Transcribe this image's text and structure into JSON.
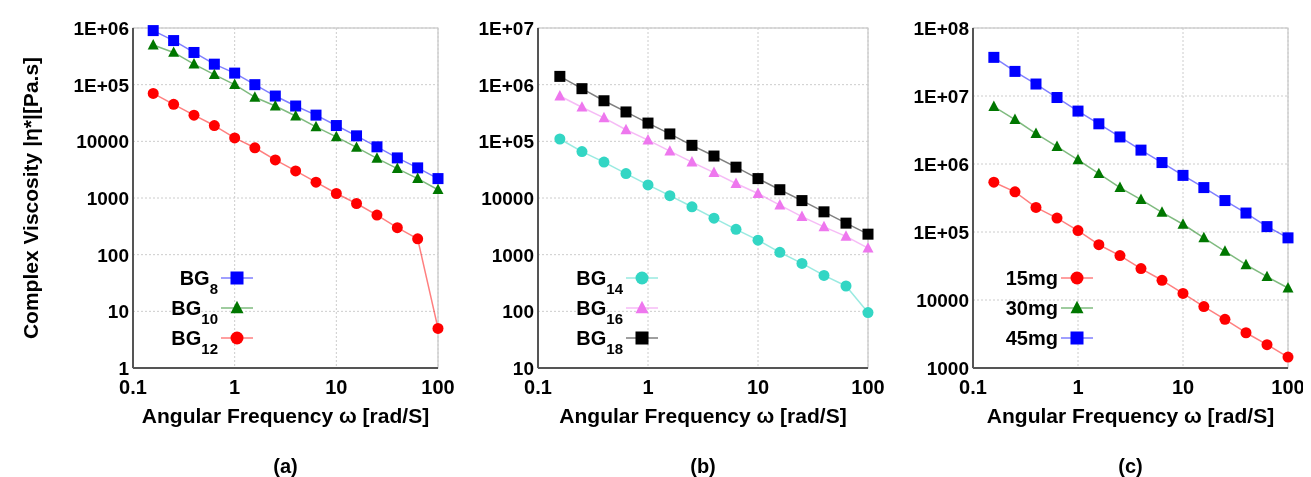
{
  "chart_data": [
    {
      "type": "line",
      "ylabel": "Complex Viscosity |η*|[Pa.s]",
      "xlabel": "Angular Frequency ω [rad/S]",
      "annotations": [
        "(a)"
      ],
      "log": "xy",
      "grid": true,
      "legend": "bottom left",
      "xlim": [
        0.1,
        100
      ],
      "xticks": [
        0.1,
        1,
        10,
        100
      ],
      "ylim": [
        1,
        1000000
      ],
      "yticks": [
        1,
        10,
        100,
        1000,
        10000,
        {
          "value": 100000,
          "label": "1E+05"
        },
        {
          "value": 1000000,
          "label": "1E+06"
        }
      ],
      "x": [
        0.158,
        0.251,
        0.398,
        0.631,
        1,
        1.58,
        2.51,
        3.98,
        6.31,
        10,
        15.8,
        25.1,
        39.8,
        63.1,
        100
      ],
      "series": [
        {
          "name": "BG$_{8}$",
          "color": "#0000ff",
          "marker": "square",
          "values": [
            900000,
            600000,
            370000,
            230000,
            160000,
            100000,
            63000,
            42000,
            29000,
            19000,
            12500,
            8000,
            5100,
            3400,
            2200
          ]
        },
        {
          "name": "BG$_{10}$",
          "color": "#007700",
          "marker": "triangle",
          "values": [
            500000,
            370000,
            230000,
            150000,
            100000,
            60000,
            42000,
            28000,
            18000,
            12000,
            7800,
            5000,
            3300,
            2200,
            1400
          ]
        },
        {
          "name": "BG$_{12}$",
          "color": "#ff0000",
          "marker": "circle",
          "values": [
            70000,
            45000,
            29000,
            19000,
            11500,
            7700,
            4700,
            3000,
            1900,
            1200,
            800,
            500,
            300,
            190,
            5
          ]
        }
      ]
    },
    {
      "type": "line",
      "xlabel": "Angular Frequency ω [rad/S]",
      "annotations": [
        "(b)"
      ],
      "log": "xy",
      "grid": true,
      "legend": "bottom left",
      "xlim": [
        0.1,
        100
      ],
      "xticks": [
        0.1,
        1,
        10,
        100
      ],
      "ylim": [
        10,
        10000000
      ],
      "yticks": [
        10,
        100,
        1000,
        10000,
        {
          "value": 100000,
          "label": "1E+05"
        },
        {
          "value": 1000000,
          "label": "1E+06"
        },
        {
          "value": 10000000,
          "label": "1E+07"
        }
      ],
      "x": [
        0.158,
        0.251,
        0.398,
        0.631,
        1,
        1.58,
        2.51,
        3.98,
        6.31,
        10,
        15.8,
        25.1,
        39.8,
        63.1,
        100
      ],
      "series": [
        {
          "name": "BG$_{14}$",
          "color": "#33d6c4",
          "marker": "circle",
          "values": [
            110000,
            66000,
            43000,
            27000,
            17000,
            11000,
            7000,
            4400,
            2800,
            1800,
            1100,
            700,
            430,
            280,
            95
          ]
        },
        {
          "name": "BG$_{16}$",
          "color": "#ee77ee",
          "marker": "triangle",
          "values": [
            630000,
            400000,
            260000,
            160000,
            105000,
            67000,
            43000,
            28000,
            18000,
            12000,
            7500,
            4700,
            3100,
            2100,
            1300
          ]
        },
        {
          "name": "BG$_{18}$",
          "color": "#000000",
          "marker": "square",
          "values": [
            1400000,
            850000,
            520000,
            330000,
            210000,
            135000,
            85000,
            55000,
            35000,
            22000,
            14000,
            9000,
            5700,
            3600,
            2300
          ]
        }
      ]
    },
    {
      "type": "line",
      "xlabel": "Angular Frequency ω [rad/S]",
      "annotations": [
        "(c)"
      ],
      "log": "xy",
      "grid": true,
      "legend": "bottom left",
      "xlim": [
        0.1,
        100
      ],
      "xticks": [
        0.1,
        1,
        10,
        100
      ],
      "ylim": [
        1000,
        100000000
      ],
      "yticks": [
        1000,
        10000,
        {
          "value": 100000,
          "label": "1E+05"
        },
        {
          "value": 1000000,
          "label": "1E+06"
        },
        {
          "value": 10000000,
          "label": "1E+07"
        },
        {
          "value": 100000000,
          "label": "1E+08"
        }
      ],
      "x": [
        0.158,
        0.251,
        0.398,
        0.631,
        1,
        1.58,
        2.51,
        3.98,
        6.31,
        10,
        15.8,
        25.1,
        39.8,
        63.1,
        100
      ],
      "series": [
        {
          "name": "15mg",
          "color": "#ff0000",
          "marker": "circle",
          "values": [
            540000,
            390000,
            230000,
            160000,
            105000,
            65000,
            45000,
            29000,
            19500,
            12500,
            8000,
            5200,
            3300,
            2200,
            1450
          ]
        },
        {
          "name": "30mg",
          "color": "#007700",
          "marker": "triangle",
          "values": [
            7000000,
            4500000,
            2800000,
            1800000,
            1150000,
            720000,
            450000,
            300000,
            195000,
            130000,
            82000,
            52000,
            33000,
            22000,
            15000
          ]
        },
        {
          "name": "45mg",
          "color": "#0000ff",
          "marker": "square",
          "values": [
            37000000,
            23000000,
            15000000,
            9500000,
            6000000,
            3900000,
            2500000,
            1600000,
            1050000,
            680000,
            450000,
            290000,
            190000,
            120000,
            82000
          ]
        }
      ]
    }
  ]
}
